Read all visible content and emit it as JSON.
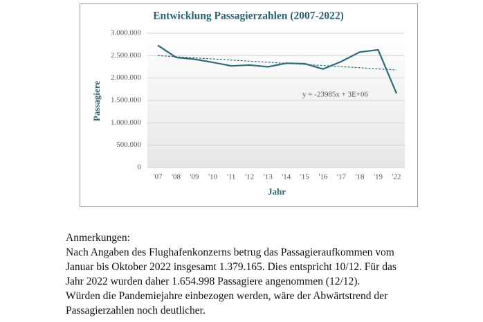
{
  "chart_data": {
    "type": "line",
    "title": "Entwicklung Passagierzahlen (2007-2022)",
    "x_label": "Jahr",
    "y_label": "Passagiere",
    "categories": [
      "'07",
      "'08",
      "'09",
      "'10",
      "'11",
      "'12",
      "'13",
      "'14",
      "'15",
      "'16",
      "'17",
      "'18",
      "'19",
      "'22"
    ],
    "series": [
      {
        "color": "#2d6a78",
        "values": [
          2730000,
          2460000,
          2420000,
          2350000,
          2270000,
          2290000,
          2250000,
          2330000,
          2320000,
          2200000,
          2370000,
          2580000,
          2630000,
          1654998
        ]
      }
    ],
    "trendline": {
      "label": "y = -23985x + 3E+06",
      "start": 2500000,
      "end": 2180000,
      "color": "#2d6a78"
    },
    "ylim": [
      0,
      3000000
    ],
    "yticks": [
      0,
      {
        "value": 500000,
        "label": "500.000"
      },
      {
        "value": 1000000,
        "label": "1.000.000"
      },
      {
        "value": 1500000,
        "label": "1.500.000"
      },
      {
        "value": 2000000,
        "label": "2.000.000"
      },
      {
        "value": 2500000,
        "label": "2.500.000"
      },
      {
        "value": 3000000,
        "label": "3.000.000"
      }
    ],
    "grid": true
  },
  "notes": {
    "heading": "Anmerkungen:",
    "lines": [
      "Nach Angaben des Flughafenkonzerns betrug das Passagieraufkommen vom",
      "Januar bis Oktober 2022 insgesamt 1.379.165. Dies entspricht 10/12. Für das",
      "Jahr 2022 wurden daher 1.654.998 Passagiere angenommen (12/12).",
      "Würden die Pandemiejahre einbezogen werden, wäre der Abwärtstrend der",
      "Passagierzahlen noch deutlicher."
    ]
  }
}
